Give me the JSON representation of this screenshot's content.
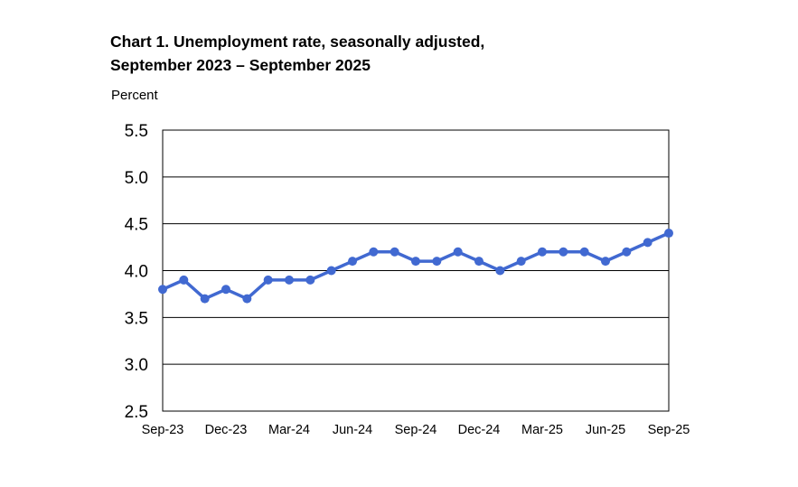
{
  "chart_data": {
    "type": "line",
    "title": "Chart 1. Unemployment rate, seasonally adjusted,",
    "subtitle": "September 2023 – September 2025",
    "ylabel": "Percent",
    "xlabel": "",
    "ylim": [
      2.5,
      5.5
    ],
    "yticks": [
      "5.5",
      "5.0",
      "4.5",
      "4.0",
      "3.5",
      "3.0",
      "2.5"
    ],
    "ytick_values": [
      5.5,
      5.0,
      4.5,
      4.0,
      3.5,
      3.0,
      2.5
    ],
    "x": [
      "Sep-23",
      "Oct-23",
      "Nov-23",
      "Dec-23",
      "Jan-24",
      "Feb-24",
      "Mar-24",
      "Apr-24",
      "May-24",
      "Jun-24",
      "Jul-24",
      "Aug-24",
      "Sep-24",
      "Oct-24",
      "Nov-24",
      "Dec-24",
      "Jan-25",
      "Feb-25",
      "Mar-25",
      "Apr-25",
      "May-25",
      "Jun-25",
      "Jul-25",
      "Aug-25",
      "Sep-25"
    ],
    "xtick_labels": [
      "Sep-23",
      "Dec-23",
      "Mar-24",
      "Jun-24",
      "Sep-24",
      "Dec-24",
      "Mar-25",
      "Jun-25",
      "Sep-25"
    ],
    "series": [
      {
        "values": [
          3.8,
          3.9,
          3.7,
          3.8,
          3.7,
          3.9,
          3.9,
          3.9,
          4.0,
          4.1,
          4.2,
          4.2,
          4.1,
          4.1,
          4.2,
          4.1,
          4.0,
          4.1,
          4.2,
          4.2,
          4.2,
          4.1,
          4.2,
          4.3,
          4.4
        ],
        "color": "#4169d1"
      }
    ],
    "grid": "horizontal",
    "legend": "none",
    "frame_color": "#000000",
    "grid_color": "#000000"
  }
}
